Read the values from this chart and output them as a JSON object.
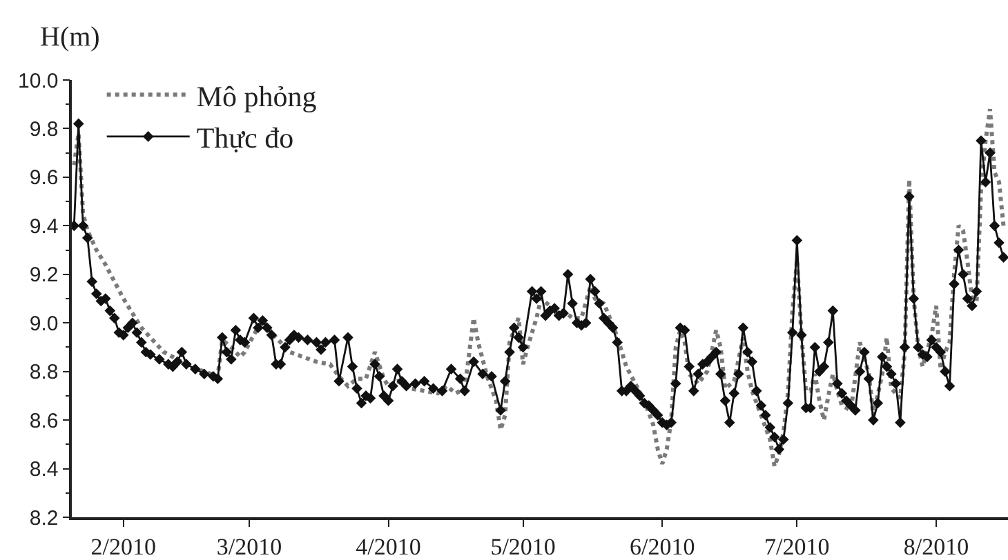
{
  "chart_data": {
    "type": "line",
    "ylabel": "H(m)",
    "legend": "top left",
    "xlim": [
      "2010-01-20T12:00",
      "2010-08-17"
    ],
    "xticks": [
      {
        "value": "2010-02-01",
        "label": "2/2010"
      },
      {
        "value": "2010-03-01",
        "label": "3/2010"
      },
      {
        "value": "2010-04-01",
        "label": "4/2010"
      },
      {
        "value": "2010-05-01",
        "label": "5/2010"
      },
      {
        "value": "2010-06-01",
        "label": "6/2010"
      },
      {
        "value": "2010-07-01",
        "label": "7/2010"
      },
      {
        "value": "2010-08-01",
        "label": "8/2010"
      }
    ],
    "ylim": [
      8.2,
      10.0
    ],
    "yticks": [
      {
        "value": 8.2,
        "label": "8.2"
      },
      {
        "value": 8.3,
        "label": null
      },
      {
        "value": 8.4,
        "label": "8.4"
      },
      {
        "value": 8.5,
        "label": null
      },
      {
        "value": 8.6,
        "label": "8.6"
      },
      {
        "value": 8.7,
        "label": null
      },
      {
        "value": 8.8,
        "label": "8.8"
      },
      {
        "value": 8.9,
        "label": null
      },
      {
        "value": 9.0,
        "label": "9.0"
      },
      {
        "value": 9.1,
        "label": null
      },
      {
        "value": 9.2,
        "label": "9.2"
      },
      {
        "value": 9.3,
        "label": null
      },
      {
        "value": 9.4,
        "label": "9.4"
      },
      {
        "value": 9.5,
        "label": null
      },
      {
        "value": 9.6,
        "label": "9.6"
      },
      {
        "value": 9.7,
        "label": null
      },
      {
        "value": 9.8,
        "label": "9.8"
      },
      {
        "value": 9.9,
        "label": null
      },
      {
        "value": 10.0,
        "label": "10.0"
      }
    ],
    "series": [
      {
        "name": "Mô phỏng",
        "color": "#7a7a7a",
        "line_style": "dotted",
        "marker": "none",
        "x": [
          "2010-01-21",
          "2010-01-22",
          "2010-01-23",
          "2010-01-24",
          "2010-01-26",
          "2010-01-28",
          "2010-01-30",
          "2010-02-01",
          "2010-02-03",
          "2010-02-05",
          "2010-02-07",
          "2010-02-10",
          "2010-02-13",
          "2010-02-16",
          "2010-02-19",
          "2010-02-22",
          "2010-02-23",
          "2010-02-25",
          "2010-02-27",
          "2010-02-28",
          "2010-03-02",
          "2010-03-04",
          "2010-03-06",
          "2010-03-08",
          "2010-03-10",
          "2010-03-13",
          "2010-03-16",
          "2010-03-19",
          "2010-03-21",
          "2010-03-23",
          "2010-03-25",
          "2010-03-27",
          "2010-03-29",
          "2010-03-31",
          "2010-04-01",
          "2010-04-03",
          "2010-04-06",
          "2010-04-09",
          "2010-04-12",
          "2010-04-14",
          "2010-04-16",
          "2010-04-18",
          "2010-04-20",
          "2010-04-21",
          "2010-04-23",
          "2010-04-25",
          "2010-04-26",
          "2010-04-27",
          "2010-04-28",
          "2010-04-30",
          "2010-05-01",
          "2010-05-02",
          "2010-05-04",
          "2010-05-05",
          "2010-05-07",
          "2010-05-08",
          "2010-05-10",
          "2010-05-12",
          "2010-05-14",
          "2010-05-16",
          "2010-05-17",
          "2010-05-19",
          "2010-05-21",
          "2010-05-22",
          "2010-05-24",
          "2010-05-26",
          "2010-05-28",
          "2010-05-30",
          "2010-05-31",
          "2010-06-01",
          "2010-06-02",
          "2010-06-03",
          "2010-06-04",
          "2010-06-05",
          "2010-06-06",
          "2010-06-07",
          "2010-06-09",
          "2010-06-11",
          "2010-06-12",
          "2010-06-13",
          "2010-06-14",
          "2010-06-15",
          "2010-06-17",
          "2010-06-19",
          "2010-06-20",
          "2010-06-21",
          "2010-06-23",
          "2010-06-25",
          "2010-06-26",
          "2010-06-27",
          "2010-06-28",
          "2010-06-29",
          "2010-06-30",
          "2010-07-01",
          "2010-07-02",
          "2010-07-03",
          "2010-07-04",
          "2010-07-05",
          "2010-07-06",
          "2010-07-07",
          "2010-07-08",
          "2010-07-09",
          "2010-07-10",
          "2010-07-11",
          "2010-07-13",
          "2010-07-15",
          "2010-07-17",
          "2010-07-18",
          "2010-07-20",
          "2010-07-21",
          "2010-07-22",
          "2010-07-24",
          "2010-07-25",
          "2010-07-26",
          "2010-07-27",
          "2010-07-28",
          "2010-07-29",
          "2010-07-31",
          "2010-08-01",
          "2010-08-02",
          "2010-08-03",
          "2010-08-04",
          "2010-08-05",
          "2010-08-06",
          "2010-08-07",
          "2010-08-08",
          "2010-08-09",
          "2010-08-10",
          "2010-08-11",
          "2010-08-12",
          "2010-08-13",
          "2010-08-14",
          "2010-08-15",
          "2010-08-16"
        ],
        "values": [
          9.65,
          9.78,
          9.45,
          9.38,
          9.3,
          9.24,
          9.17,
          9.1,
          9.04,
          8.98,
          8.94,
          8.88,
          8.85,
          8.82,
          8.8,
          8.78,
          8.93,
          8.9,
          8.86,
          8.88,
          8.95,
          9.01,
          8.96,
          8.92,
          8.88,
          8.86,
          8.84,
          8.83,
          8.78,
          8.74,
          8.77,
          8.77,
          8.88,
          8.77,
          8.74,
          8.76,
          8.73,
          8.72,
          8.71,
          8.74,
          8.71,
          8.73,
          9.02,
          8.92,
          8.78,
          8.68,
          8.56,
          8.62,
          8.92,
          9.02,
          8.83,
          8.9,
          9.02,
          9.1,
          9.07,
          9.03,
          9.05,
          9.02,
          9.02,
          9.15,
          9.1,
          9.08,
          8.99,
          8.94,
          8.82,
          8.75,
          8.68,
          8.58,
          8.48,
          8.42,
          8.48,
          8.6,
          8.9,
          8.97,
          8.92,
          8.79,
          8.75,
          8.8,
          8.88,
          8.97,
          8.9,
          8.73,
          8.76,
          8.94,
          8.8,
          8.72,
          8.62,
          8.52,
          8.41,
          8.46,
          8.55,
          8.71,
          9.05,
          9.26,
          8.95,
          8.72,
          8.72,
          8.79,
          8.68,
          8.6,
          8.7,
          8.79,
          8.72,
          8.66,
          8.64,
          8.92,
          8.79,
          8.62,
          8.79,
          8.94,
          8.73,
          8.69,
          8.88,
          9.59,
          9.1,
          8.9,
          8.82,
          8.95,
          9.07,
          8.81,
          8.88,
          8.92,
          9.2,
          9.4,
          9.38,
          9.25,
          9.1,
          9.09,
          9.55,
          9.75,
          9.88,
          9.62,
          9.58,
          9.4
        ]
      },
      {
        "name": "Thực đo",
        "color": "#111111",
        "line_style": "solid",
        "marker": "diamond",
        "x": [
          "2010-01-21",
          "2010-01-22",
          "2010-01-23",
          "2010-01-24",
          "2010-01-25",
          "2010-01-26",
          "2010-01-27",
          "2010-01-28",
          "2010-01-29",
          "2010-01-30",
          "2010-01-31",
          "2010-02-01",
          "2010-02-02",
          "2010-02-03",
          "2010-02-04",
          "2010-02-05",
          "2010-02-06",
          "2010-02-07",
          "2010-02-09",
          "2010-02-11",
          "2010-02-12",
          "2010-02-13",
          "2010-02-14",
          "2010-02-15",
          "2010-02-17",
          "2010-02-19",
          "2010-02-21",
          "2010-02-22",
          "2010-02-23",
          "2010-02-24",
          "2010-02-25",
          "2010-02-26",
          "2010-02-27",
          "2010-02-28",
          "2010-03-02",
          "2010-03-03",
          "2010-03-04",
          "2010-03-05",
          "2010-03-06",
          "2010-03-07",
          "2010-03-08",
          "2010-03-09",
          "2010-03-10",
          "2010-03-11",
          "2010-03-12",
          "2010-03-14",
          "2010-03-16",
          "2010-03-17",
          "2010-03-18",
          "2010-03-20",
          "2010-03-21",
          "2010-03-23",
          "2010-03-24",
          "2010-03-25",
          "2010-03-26",
          "2010-03-27",
          "2010-03-28",
          "2010-03-29",
          "2010-03-30",
          "2010-03-31",
          "2010-04-01",
          "2010-04-02",
          "2010-04-03",
          "2010-04-04",
          "2010-04-05",
          "2010-04-07",
          "2010-04-09",
          "2010-04-11",
          "2010-04-13",
          "2010-04-15",
          "2010-04-17",
          "2010-04-18",
          "2010-04-20",
          "2010-04-22",
          "2010-04-24",
          "2010-04-26",
          "2010-04-27",
          "2010-04-28",
          "2010-04-29",
          "2010-04-30",
          "2010-05-01",
          "2010-05-03",
          "2010-05-04",
          "2010-05-05",
          "2010-05-06",
          "2010-05-07",
          "2010-05-08",
          "2010-05-09",
          "2010-05-10",
          "2010-05-11",
          "2010-05-12",
          "2010-05-13",
          "2010-05-14",
          "2010-05-15",
          "2010-05-16",
          "2010-05-17",
          "2010-05-18",
          "2010-05-19",
          "2010-05-20",
          "2010-05-21",
          "2010-05-22",
          "2010-05-23",
          "2010-05-24",
          "2010-05-25",
          "2010-05-26",
          "2010-05-27",
          "2010-05-28",
          "2010-05-29",
          "2010-05-30",
          "2010-05-31",
          "2010-06-01",
          "2010-06-02",
          "2010-06-03",
          "2010-06-04",
          "2010-06-05",
          "2010-06-06",
          "2010-06-07",
          "2010-06-08",
          "2010-06-09",
          "2010-06-10",
          "2010-06-11",
          "2010-06-12",
          "2010-06-13",
          "2010-06-14",
          "2010-06-15",
          "2010-06-16",
          "2010-06-17",
          "2010-06-18",
          "2010-06-19",
          "2010-06-20",
          "2010-06-21",
          "2010-06-22",
          "2010-06-23",
          "2010-06-24",
          "2010-06-25",
          "2010-06-26",
          "2010-06-27",
          "2010-06-28",
          "2010-06-29",
          "2010-06-30",
          "2010-07-01",
          "2010-07-02",
          "2010-07-03",
          "2010-07-04",
          "2010-07-05",
          "2010-07-06",
          "2010-07-07",
          "2010-07-08",
          "2010-07-09",
          "2010-07-10",
          "2010-07-11",
          "2010-07-12",
          "2010-07-13",
          "2010-07-14",
          "2010-07-15",
          "2010-07-16",
          "2010-07-17",
          "2010-07-18",
          "2010-07-19",
          "2010-07-20",
          "2010-07-21",
          "2010-07-22",
          "2010-07-23",
          "2010-07-24",
          "2010-07-25",
          "2010-07-26",
          "2010-07-27",
          "2010-07-28",
          "2010-07-29",
          "2010-07-30",
          "2010-07-31",
          "2010-08-01",
          "2010-08-02",
          "2010-08-03",
          "2010-08-04",
          "2010-08-05",
          "2010-08-06",
          "2010-08-07",
          "2010-08-08",
          "2010-08-09",
          "2010-08-10",
          "2010-08-11",
          "2010-08-12",
          "2010-08-13",
          "2010-08-14",
          "2010-08-15",
          "2010-08-16"
        ],
        "values": [
          9.4,
          9.82,
          9.4,
          9.35,
          9.17,
          9.12,
          9.09,
          9.1,
          9.05,
          9.02,
          8.96,
          8.95,
          8.98,
          9.0,
          8.96,
          8.92,
          8.88,
          8.87,
          8.85,
          8.83,
          8.82,
          8.84,
          8.88,
          8.83,
          8.81,
          8.79,
          8.78,
          8.77,
          8.94,
          8.88,
          8.85,
          8.97,
          8.93,
          8.92,
          9.02,
          8.98,
          9.01,
          8.98,
          8.95,
          8.83,
          8.83,
          8.9,
          8.93,
          8.95,
          8.94,
          8.93,
          8.92,
          8.89,
          8.92,
          8.93,
          8.76,
          8.94,
          8.82,
          8.73,
          8.67,
          8.7,
          8.69,
          8.83,
          8.78,
          8.7,
          8.68,
          8.74,
          8.81,
          8.76,
          8.74,
          8.75,
          8.76,
          8.73,
          8.72,
          8.81,
          8.77,
          8.72,
          8.84,
          8.79,
          8.78,
          8.64,
          8.76,
          8.88,
          8.98,
          8.94,
          8.9,
          9.13,
          9.1,
          9.13,
          9.03,
          9.05,
          9.06,
          9.03,
          9.04,
          9.2,
          9.08,
          9.0,
          8.99,
          9.0,
          9.18,
          9.13,
          9.08,
          9.02,
          9.0,
          8.98,
          8.92,
          8.72,
          8.72,
          8.74,
          8.72,
          8.7,
          8.67,
          8.66,
          8.64,
          8.62,
          8.59,
          8.58,
          8.59,
          8.75,
          8.98,
          8.97,
          8.82,
          8.72,
          8.79,
          8.83,
          8.84,
          8.86,
          8.88,
          8.79,
          8.68,
          8.59,
          8.71,
          8.79,
          8.98,
          8.88,
          8.84,
          8.72,
          8.66,
          8.62,
          8.57,
          8.53,
          8.48,
          8.52,
          8.67,
          8.96,
          9.34,
          8.95,
          8.65,
          8.65,
          8.9,
          8.8,
          8.82,
          8.92,
          9.05,
          8.75,
          8.71,
          8.68,
          8.66,
          8.64,
          8.8,
          8.88,
          8.77,
          8.6,
          8.67,
          8.86,
          8.82,
          8.79,
          8.75,
          8.59,
          8.9,
          9.52,
          9.1,
          8.9,
          8.87,
          8.86,
          8.93,
          8.9,
          8.88,
          8.8,
          8.74,
          9.16,
          9.3,
          9.2,
          9.1,
          9.07,
          9.13,
          9.75,
          9.58,
          9.7,
          9.4,
          9.33,
          9.27
        ]
      }
    ]
  }
}
